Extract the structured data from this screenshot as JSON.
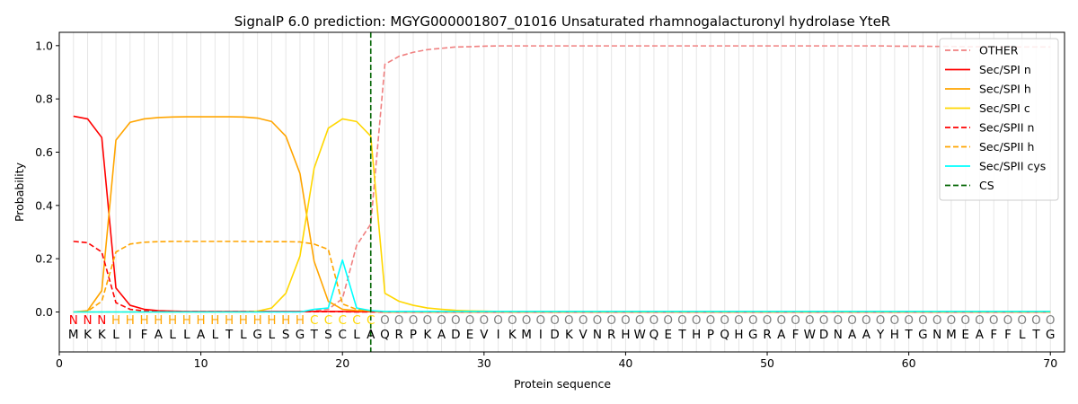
{
  "chart_data": {
    "type": "line",
    "title": "SignalP 6.0 prediction: MGYG000001807_01016 Unsaturated rhamnogalacturonyl hydrolase YteR",
    "xlabel": "Protein sequence",
    "ylabel": "Probability",
    "xlim": [
      0,
      71
    ],
    "ylim": [
      -0.15,
      1.05
    ],
    "xticks": [
      "0",
      "10",
      "20",
      "30",
      "40",
      "50",
      "60",
      "70"
    ],
    "yticks": [
      "0.0",
      "0.2",
      "0.4",
      "0.6",
      "0.8",
      "1.0"
    ],
    "grid": "vertical lines at each residue",
    "legend_position": "top-right",
    "cleavage_site": 22,
    "sequence": [
      "M",
      "K",
      "K",
      "L",
      "I",
      "F",
      "A",
      "L",
      "L",
      "A",
      "L",
      "T",
      "L",
      "G",
      "L",
      "S",
      "G",
      "T",
      "S",
      "C",
      "L",
      "A",
      "Q",
      "R",
      "P",
      "K",
      "A",
      "D",
      "E",
      "V",
      "I",
      "K",
      "M",
      "I",
      "D",
      "K",
      "V",
      "N",
      "R",
      "H",
      "W",
      "Q",
      "E",
      "T",
      "H",
      "P",
      "Q",
      "H",
      "G",
      "R",
      "A",
      "F",
      "W",
      "D",
      "N",
      "A",
      "A",
      "Y",
      "H",
      "T",
      "G",
      "N",
      "M",
      "E",
      "A",
      "F",
      "F",
      "L",
      "T",
      "G"
    ],
    "labels": [
      "N",
      "N",
      "N",
      "H",
      "H",
      "H",
      "H",
      "H",
      "H",
      "H",
      "H",
      "H",
      "H",
      "H",
      "H",
      "H",
      "H",
      "C",
      "C",
      "C",
      "C",
      "C",
      "O",
      "O",
      "O",
      "O",
      "O",
      "O",
      "O",
      "O",
      "O",
      "O",
      "O",
      "O",
      "O",
      "O",
      "O",
      "O",
      "O",
      "O",
      "O",
      "O",
      "O",
      "O",
      "O",
      "O",
      "O",
      "O",
      "O",
      "O",
      "O",
      "O",
      "O",
      "O",
      "O",
      "O",
      "O",
      "O",
      "O",
      "O",
      "O",
      "O",
      "O",
      "O",
      "O",
      "O",
      "O",
      "O",
      "O",
      "O"
    ],
    "label_colors": {
      "N": "#ff0000",
      "H": "#ffa500",
      "C": "#ffd700",
      "O": "#808080"
    },
    "series": [
      {
        "name": "OTHER",
        "color": "#f08080",
        "dash": "dashed",
        "values": [
          0.0,
          0.0,
          0.0,
          0.0,
          0.0,
          0.0,
          0.0,
          0.0,
          0.0,
          0.0,
          0.0,
          0.0,
          0.0,
          0.0,
          0.0,
          0.0,
          0.0,
          0.005,
          0.01,
          0.05,
          0.25,
          0.33,
          0.93,
          0.96,
          0.975,
          0.985,
          0.99,
          0.995,
          0.996,
          0.998,
          0.999,
          0.999,
          0.999,
          0.999,
          0.999,
          0.999,
          0.999,
          0.999,
          0.999,
          0.999,
          0.999,
          0.999,
          0.999,
          0.999,
          0.999,
          0.999,
          0.999,
          0.999,
          0.999,
          0.999,
          0.999,
          0.999,
          0.999,
          0.999,
          0.999,
          0.999,
          0.999,
          0.999,
          0.998,
          0.998,
          0.998,
          0.997,
          0.997,
          0.996,
          0.996,
          0.995,
          0.995,
          0.995,
          0.995,
          0.995
        ]
      },
      {
        "name": "Sec/SPI n",
        "color": "#ff0000",
        "dash": "solid",
        "values": [
          0.735,
          0.725,
          0.655,
          0.09,
          0.025,
          0.01,
          0.005,
          0.003,
          0.002,
          0.002,
          0.002,
          0.002,
          0.002,
          0.002,
          0.002,
          0.002,
          0.002,
          0.002,
          0.002,
          0.002,
          0.001,
          0.001,
          0.0,
          0.0,
          0.0,
          0.0,
          0.0,
          0.0,
          0.0,
          0.0,
          0.0,
          0.0,
          0.0,
          0.0,
          0.0,
          0.0,
          0.0,
          0.0,
          0.0,
          0.0,
          0.0,
          0.0,
          0.0,
          0.0,
          0.0,
          0.0,
          0.0,
          0.0,
          0.0,
          0.0,
          0.0,
          0.0,
          0.0,
          0.0,
          0.0,
          0.0,
          0.0,
          0.0,
          0.0,
          0.0,
          0.0,
          0.0,
          0.0,
          0.0,
          0.0,
          0.0,
          0.0,
          0.0,
          0.0,
          0.0
        ]
      },
      {
        "name": "Sec/SPI h",
        "color": "#ffa500",
        "dash": "solid",
        "values": [
          0.0,
          0.005,
          0.08,
          0.645,
          0.712,
          0.725,
          0.73,
          0.732,
          0.733,
          0.733,
          0.733,
          0.733,
          0.732,
          0.728,
          0.715,
          0.66,
          0.52,
          0.19,
          0.04,
          0.01,
          0.005,
          0.003,
          0.0,
          0.0,
          0.0,
          0.0,
          0.0,
          0.0,
          0.0,
          0.0,
          0.0,
          0.0,
          0.0,
          0.0,
          0.0,
          0.0,
          0.0,
          0.0,
          0.0,
          0.0,
          0.0,
          0.0,
          0.0,
          0.0,
          0.0,
          0.0,
          0.0,
          0.0,
          0.0,
          0.0,
          0.0,
          0.0,
          0.0,
          0.0,
          0.0,
          0.0,
          0.0,
          0.0,
          0.0,
          0.0,
          0.0,
          0.0,
          0.0,
          0.0,
          0.0,
          0.0,
          0.0,
          0.0,
          0.0,
          0.0
        ]
      },
      {
        "name": "Sec/SPI c",
        "color": "#ffd700",
        "dash": "solid",
        "values": [
          0.0,
          0.0,
          0.0,
          0.0,
          0.0,
          0.0,
          0.0,
          0.0,
          0.0,
          0.0,
          0.0,
          0.0,
          0.0,
          0.003,
          0.015,
          0.07,
          0.21,
          0.54,
          0.69,
          0.725,
          0.715,
          0.66,
          0.07,
          0.04,
          0.025,
          0.015,
          0.01,
          0.006,
          0.004,
          0.003,
          0.002,
          0.002,
          0.002,
          0.002,
          0.002,
          0.002,
          0.002,
          0.002,
          0.002,
          0.002,
          0.002,
          0.002,
          0.002,
          0.002,
          0.002,
          0.002,
          0.002,
          0.002,
          0.002,
          0.002,
          0.002,
          0.002,
          0.002,
          0.002,
          0.002,
          0.002,
          0.002,
          0.002,
          0.002,
          0.002,
          0.002,
          0.002,
          0.002,
          0.002,
          0.002,
          0.002,
          0.002,
          0.002,
          0.002,
          0.002
        ]
      },
      {
        "name": "Sec/SPII n",
        "color": "#ff0000",
        "dash": "dashed",
        "values": [
          0.265,
          0.26,
          0.225,
          0.035,
          0.01,
          0.004,
          0.002,
          0.001,
          0.001,
          0.001,
          0.001,
          0.001,
          0.001,
          0.001,
          0.001,
          0.001,
          0.001,
          0.001,
          0.001,
          0.001,
          0.0,
          0.0,
          0.0,
          0.0,
          0.0,
          0.0,
          0.0,
          0.0,
          0.0,
          0.0,
          0.0,
          0.0,
          0.0,
          0.0,
          0.0,
          0.0,
          0.0,
          0.0,
          0.0,
          0.0,
          0.0,
          0.0,
          0.0,
          0.0,
          0.0,
          0.0,
          0.0,
          0.0,
          0.0,
          0.0,
          0.0,
          0.0,
          0.0,
          0.0,
          0.0,
          0.0,
          0.0,
          0.0,
          0.0,
          0.0,
          0.0,
          0.0,
          0.0,
          0.0,
          0.0,
          0.0,
          0.0,
          0.0,
          0.0,
          0.0
        ]
      },
      {
        "name": "Sec/SPII h",
        "color": "#ffa500",
        "dash": "dashed",
        "values": [
          0.0,
          0.003,
          0.04,
          0.225,
          0.255,
          0.262,
          0.264,
          0.265,
          0.265,
          0.265,
          0.265,
          0.265,
          0.265,
          0.264,
          0.264,
          0.264,
          0.263,
          0.255,
          0.235,
          0.03,
          0.01,
          0.003,
          0.0,
          0.0,
          0.0,
          0.0,
          0.0,
          0.0,
          0.0,
          0.0,
          0.0,
          0.0,
          0.0,
          0.0,
          0.0,
          0.0,
          0.0,
          0.0,
          0.0,
          0.0,
          0.0,
          0.0,
          0.0,
          0.0,
          0.0,
          0.0,
          0.0,
          0.0,
          0.0,
          0.0,
          0.0,
          0.0,
          0.0,
          0.0,
          0.0,
          0.0,
          0.0,
          0.0,
          0.0,
          0.0,
          0.0,
          0.0,
          0.0,
          0.0,
          0.0,
          0.0,
          0.0,
          0.0,
          0.0,
          0.0
        ]
      },
      {
        "name": "Sec/SPII cys",
        "color": "#00ffff",
        "dash": "solid",
        "values": [
          0.0,
          0.0,
          0.0,
          0.0,
          0.0,
          0.0,
          0.0,
          0.0,
          0.0,
          0.0,
          0.0,
          0.0,
          0.0,
          0.0,
          0.0,
          0.0,
          0.0,
          0.01,
          0.015,
          0.195,
          0.015,
          0.005,
          0.002,
          0.002,
          0.002,
          0.002,
          0.002,
          0.002,
          0.002,
          0.002,
          0.002,
          0.002,
          0.002,
          0.002,
          0.002,
          0.002,
          0.002,
          0.002,
          0.002,
          0.002,
          0.002,
          0.002,
          0.002,
          0.002,
          0.002,
          0.002,
          0.002,
          0.002,
          0.002,
          0.002,
          0.002,
          0.002,
          0.002,
          0.002,
          0.002,
          0.002,
          0.002,
          0.002,
          0.002,
          0.002,
          0.002,
          0.002,
          0.002,
          0.002,
          0.002,
          0.002,
          0.002,
          0.002,
          0.002,
          0.002
        ]
      }
    ],
    "legend": [
      {
        "label": "OTHER",
        "color": "#f08080",
        "dash": "dashed"
      },
      {
        "label": "Sec/SPI n",
        "color": "#ff0000",
        "dash": "solid"
      },
      {
        "label": "Sec/SPI h",
        "color": "#ffa500",
        "dash": "solid"
      },
      {
        "label": "Sec/SPI c",
        "color": "#ffd700",
        "dash": "solid"
      },
      {
        "label": "Sec/SPII n",
        "color": "#ff0000",
        "dash": "dashed"
      },
      {
        "label": "Sec/SPII h",
        "color": "#ffa500",
        "dash": "dashed"
      },
      {
        "label": "Sec/SPII cys",
        "color": "#00ffff",
        "dash": "solid"
      },
      {
        "label": "CS",
        "color": "#006400",
        "dash": "dashed"
      }
    ]
  }
}
